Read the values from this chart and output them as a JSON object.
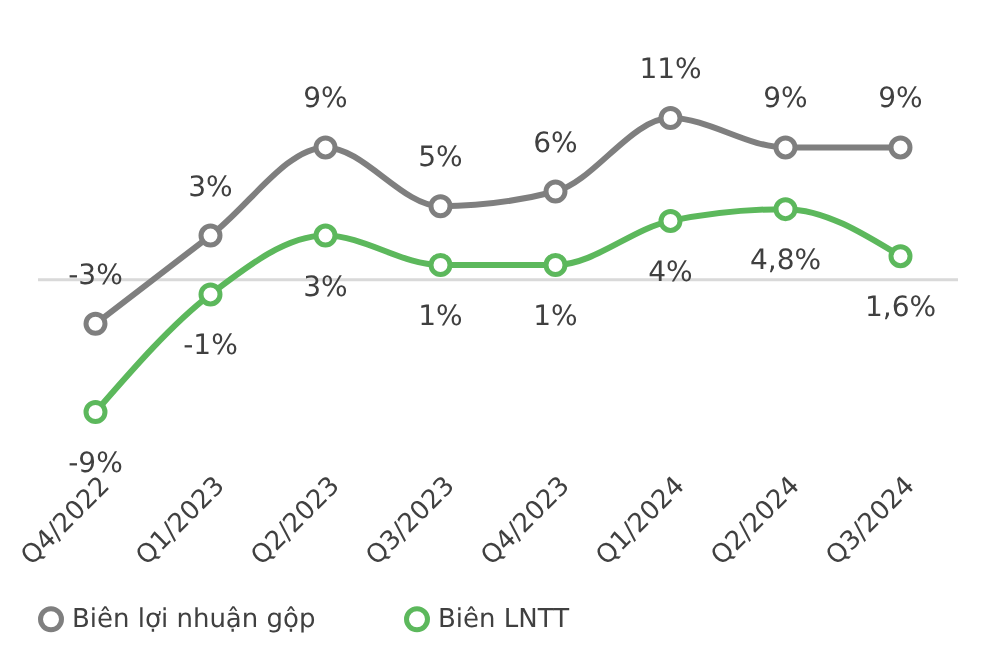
{
  "chart_data": {
    "type": "line",
    "categories": [
      "Q4/2022",
      "Q1/2023",
      "Q2/2023",
      "Q3/2023",
      "Q4/2023",
      "Q1/2024",
      "Q2/2024",
      "Q3/2024"
    ],
    "series": [
      {
        "name": "Biên lợi nhuận gộp",
        "color": "#7f7f7f",
        "values": [
          -3,
          3,
          9,
          5,
          6,
          11,
          9,
          9
        ],
        "value_labels": [
          "-3%",
          "3%",
          "9%",
          "5%",
          "6%",
          "11%",
          "9%",
          "9%"
        ]
      },
      {
        "name": "Biên LNTT",
        "color": "#5cb85c",
        "values": [
          -9,
          -1,
          3,
          1,
          1,
          4,
          4.8,
          1.6
        ],
        "value_labels": [
          "-9%",
          "-1%",
          "3%",
          "1%",
          "1%",
          "4%",
          "4,8%",
          "1,6%"
        ]
      }
    ],
    "ref_lines": [
      {
        "axis": "y",
        "value": 0,
        "color": "#d9d9d9"
      }
    ],
    "legend": "bottom",
    "marker": "circle",
    "line_style": "solid"
  }
}
